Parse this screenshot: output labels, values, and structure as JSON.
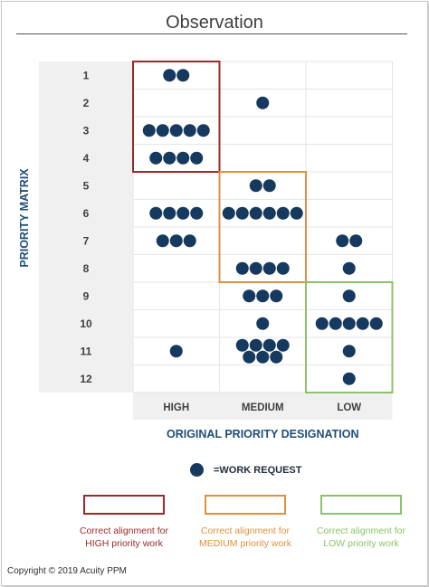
{
  "title": "Observation",
  "chart_data": {
    "type": "scatter",
    "xlabel": "ORIGINAL PRIORITY DESIGNATION",
    "ylabel": "PRIORITY MATRIX",
    "categories": [
      "HIGH",
      "MEDIUM",
      "LOW"
    ],
    "rows": [
      "1",
      "2",
      "3",
      "4",
      "5",
      "6",
      "7",
      "8",
      "9",
      "10",
      "11",
      "12"
    ],
    "counts": [
      {
        "row": "1",
        "HIGH": 2,
        "MEDIUM": 0,
        "LOW": 0
      },
      {
        "row": "2",
        "HIGH": 0,
        "MEDIUM": 1,
        "LOW": 0
      },
      {
        "row": "3",
        "HIGH": 5,
        "MEDIUM": 0,
        "LOW": 0
      },
      {
        "row": "4",
        "HIGH": 4,
        "MEDIUM": 0,
        "LOW": 0
      },
      {
        "row": "5",
        "HIGH": 0,
        "MEDIUM": 2,
        "LOW": 0
      },
      {
        "row": "6",
        "HIGH": 4,
        "MEDIUM": 6,
        "LOW": 0
      },
      {
        "row": "7",
        "HIGH": 3,
        "MEDIUM": 0,
        "LOW": 2
      },
      {
        "row": "8",
        "HIGH": 0,
        "MEDIUM": 4,
        "LOW": 1
      },
      {
        "row": "9",
        "HIGH": 0,
        "MEDIUM": 3,
        "LOW": 1
      },
      {
        "row": "10",
        "HIGH": 0,
        "MEDIUM": 1,
        "LOW": 5
      },
      {
        "row": "11",
        "HIGH": 1,
        "MEDIUM": 7,
        "LOW": 1
      },
      {
        "row": "12",
        "HIGH": 0,
        "MEDIUM": 0,
        "LOW": 1
      }
    ],
    "alignment_boxes": [
      {
        "column": "HIGH",
        "rows": [
          "1",
          "4"
        ],
        "color": "#9b2a2a"
      },
      {
        "column": "MEDIUM",
        "rows": [
          "5",
          "8"
        ],
        "color": "#e0913f"
      },
      {
        "column": "LOW",
        "rows": [
          "9",
          "12"
        ],
        "color": "#8dc26a"
      }
    ]
  },
  "legend": {
    "marker_label": "=WORK REQUEST",
    "items": [
      {
        "line1": "Correct alignment for",
        "line2": "HIGH priority work",
        "color": "#9b2a2a"
      },
      {
        "line1": "Correct alignment for",
        "line2": "MEDIUM priority work",
        "color": "#e0913f"
      },
      {
        "line1": "Correct alignment for",
        "line2": "LOW priority work",
        "color": "#8dc26a"
      }
    ]
  },
  "colors": {
    "dot": "#163a5f",
    "axis_text": "#1f4e79",
    "shade": "#f0f0f0"
  },
  "footer": "Copyright © 2019 Acuity PPM"
}
